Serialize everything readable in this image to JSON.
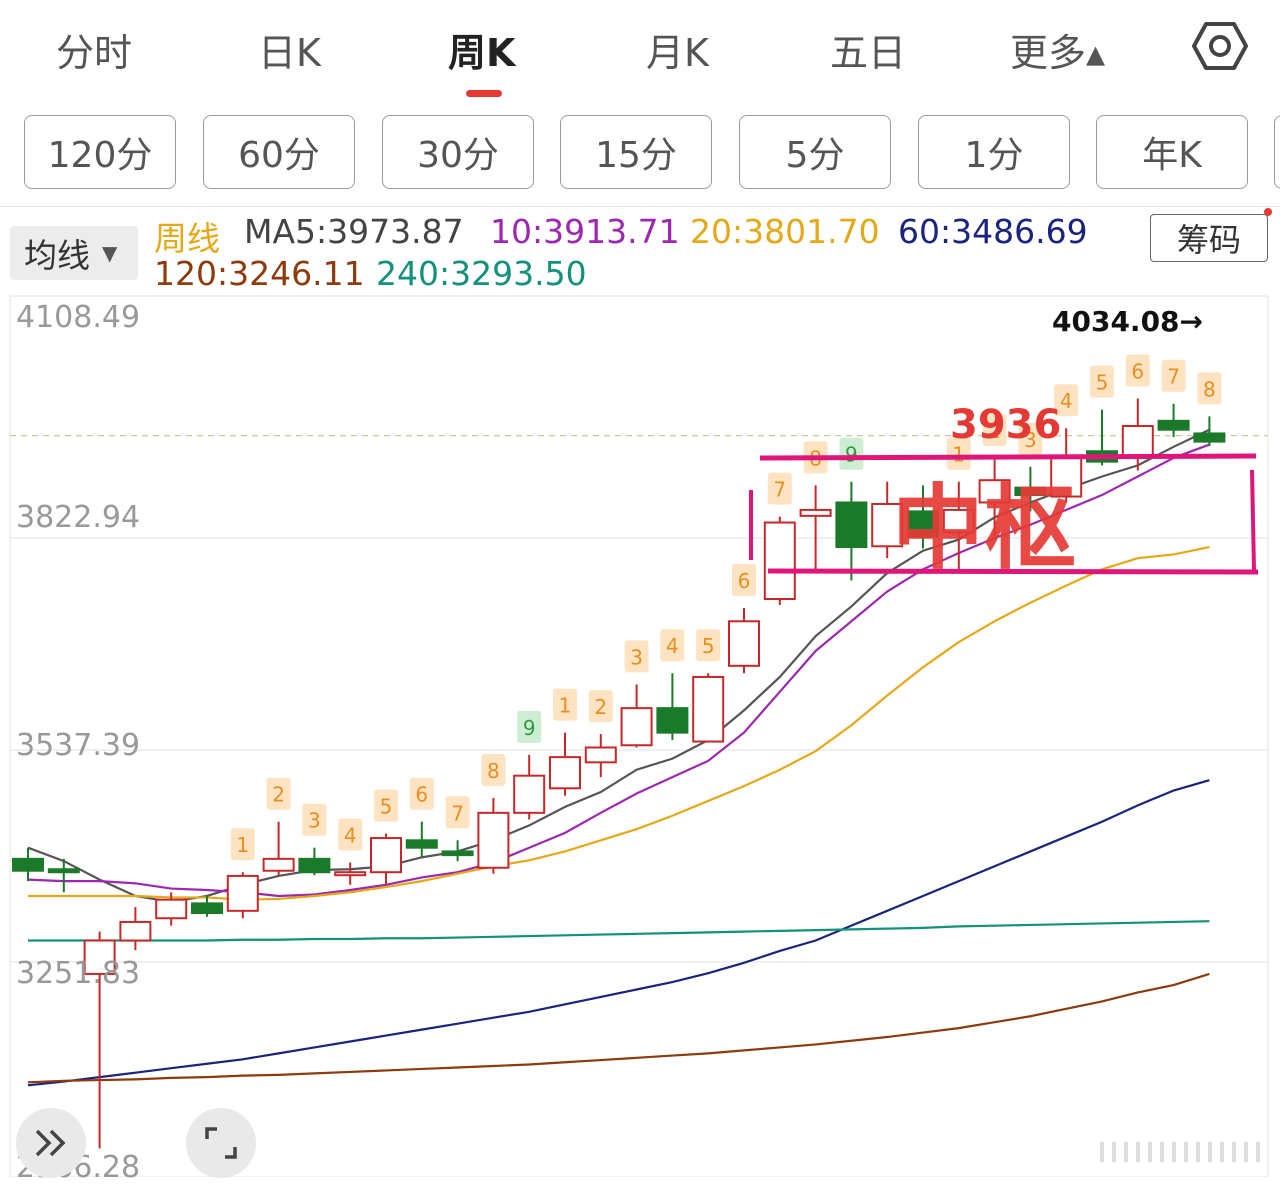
{
  "tabs": [
    {
      "label": "分时",
      "active": false
    },
    {
      "label": "日K",
      "active": false
    },
    {
      "label": "周K",
      "active": true
    },
    {
      "label": "月K",
      "active": false
    },
    {
      "label": "五日",
      "active": false
    },
    {
      "label": "更多▴",
      "active": false
    }
  ],
  "periods": [
    "120分",
    "60分",
    "30分",
    "15分",
    "5分",
    "1分",
    "年K"
  ],
  "ma_selector": "均线",
  "chips_button": "筹码",
  "legend": {
    "series_name": "周线",
    "ma5": "MA5:3973.87",
    "ma10": "10:3913.71",
    "ma20": "20:3801.70",
    "ma60": "60:3486.69",
    "ma120": "120:3246.11",
    "ma240": "240:3293.50"
  },
  "colors": {
    "accent": "#e53935",
    "up": "#c62828",
    "down": "#1b7a2a",
    "ma5": "#555555",
    "ma10": "#9c27b0",
    "ma20": "#e6a817",
    "ma60": "#1a237e",
    "ma120": "#8d3a0c",
    "ma240": "#12927a",
    "annotation": "#e0157a",
    "annotation_text": "#e53935"
  },
  "chart_data": {
    "type": "candlestick",
    "ylim": [
      2966.28,
      4108.49
    ],
    "y_ticks": [
      "4108.49",
      "3822.94",
      "3537.39",
      "3251.83",
      "2966.28"
    ],
    "reference_line": 3950,
    "high_marker": "4034.08→",
    "annotations": {
      "level": "3936",
      "zone_label": "中枢"
    },
    "candles": [
      {
        "o": 3380,
        "c": 3364,
        "h": 3395,
        "l": 3350,
        "tag": ""
      },
      {
        "o": 3366,
        "c": 3364,
        "h": 3380,
        "l": 3335,
        "tag": ""
      },
      {
        "o": 3225,
        "c": 3270,
        "h": 3282,
        "l": 2990,
        "tag": ""
      },
      {
        "o": 3270,
        "c": 3295,
        "h": 3315,
        "l": 3257,
        "tag": ""
      },
      {
        "o": 3300,
        "c": 3325,
        "h": 3335,
        "l": 3290,
        "tag": ""
      },
      {
        "o": 3320,
        "c": 3307,
        "h": 3330,
        "l": 3302,
        "tag": ""
      },
      {
        "o": 3310,
        "c": 3357,
        "h": 3362,
        "l": 3300,
        "tag": "1"
      },
      {
        "o": 3364,
        "c": 3380,
        "h": 3430,
        "l": 3357,
        "tag": "2"
      },
      {
        "o": 3380,
        "c": 3362,
        "h": 3395,
        "l": 3358,
        "tag": "3"
      },
      {
        "o": 3360,
        "c": 3362,
        "h": 3375,
        "l": 3345,
        "tag": "4"
      },
      {
        "o": 3362,
        "c": 3408,
        "h": 3414,
        "l": 3346,
        "tag": "5"
      },
      {
        "o": 3405,
        "c": 3395,
        "h": 3430,
        "l": 3383,
        "tag": "6"
      },
      {
        "o": 3390,
        "c": 3385,
        "h": 3405,
        "l": 3377,
        "tag": "7"
      },
      {
        "o": 3368,
        "c": 3442,
        "h": 3462,
        "l": 3360,
        "tag": "8"
      },
      {
        "o": 3442,
        "c": 3492,
        "h": 3520,
        "l": 3433,
        "tag": "9"
      },
      {
        "o": 3475,
        "c": 3517,
        "h": 3550,
        "l": 3465,
        "tag": "1"
      },
      {
        "o": 3510,
        "c": 3530,
        "h": 3548,
        "l": 3490,
        "tag": "2"
      },
      {
        "o": 3533,
        "c": 3583,
        "h": 3615,
        "l": 3530,
        "tag": "3"
      },
      {
        "o": 3583,
        "c": 3550,
        "h": 3630,
        "l": 3540,
        "tag": "4"
      },
      {
        "o": 3538,
        "c": 3625,
        "h": 3630,
        "l": 3538,
        "tag": "5"
      },
      {
        "o": 3640,
        "c": 3700,
        "h": 3718,
        "l": 3630,
        "tag": "6"
      },
      {
        "o": 3730,
        "c": 3833,
        "h": 3841,
        "l": 3722,
        "tag": "7"
      },
      {
        "o": 3842,
        "c": 3850,
        "h": 3883,
        "l": 3767,
        "tag": "8"
      },
      {
        "o": 3860,
        "c": 3800,
        "h": 3888,
        "l": 3755,
        "tag": "9"
      },
      {
        "o": 3801,
        "c": 3858,
        "h": 3888,
        "l": 3785,
        "tag": ""
      },
      {
        "o": 3848,
        "c": 3814,
        "h": 3883,
        "l": 3798,
        "tag": ""
      },
      {
        "o": 3820,
        "c": 3850,
        "h": 3888,
        "l": 3770,
        "tag": "1"
      },
      {
        "o": 3860,
        "c": 3890,
        "h": 3920,
        "l": 3810,
        "tag": "2"
      },
      {
        "o": 3880,
        "c": 3870,
        "h": 3908,
        "l": 3848,
        "tag": "3"
      },
      {
        "o": 3868,
        "c": 3920,
        "h": 3960,
        "l": 3860,
        "tag": "4"
      },
      {
        "o": 3929,
        "c": 3915,
        "h": 3985,
        "l": 3910,
        "tag": "5"
      },
      {
        "o": 3920,
        "c": 3963,
        "h": 4000,
        "l": 3903,
        "tag": "6"
      },
      {
        "o": 3970,
        "c": 3958,
        "h": 3993,
        "l": 3948,
        "tag": "7"
      },
      {
        "o": 3953,
        "c": 3942,
        "h": 3976,
        "l": 3936,
        "tag": "8"
      }
    ],
    "moving_averages": {
      "ma5": [
        3395,
        3377,
        3352,
        3330,
        3322,
        3330,
        3345,
        3357,
        3365,
        3366,
        3370,
        3382,
        3390,
        3405,
        3425,
        3450,
        3470,
        3500,
        3515,
        3540,
        3580,
        3625,
        3680,
        3720,
        3765,
        3795,
        3810,
        3840,
        3860,
        3878,
        3895,
        3910,
        3935,
        3958
      ],
      "ma10": [
        3352,
        3350,
        3350,
        3347,
        3340,
        3338,
        3335,
        3330,
        3332,
        3338,
        3345,
        3355,
        3362,
        3375,
        3395,
        3415,
        3442,
        3468,
        3490,
        3512,
        3550,
        3605,
        3660,
        3700,
        3740,
        3770,
        3792,
        3812,
        3830,
        3850,
        3870,
        3895,
        3920,
        3938
      ],
      "ma20": [
        3330,
        3330,
        3330,
        3330,
        3328,
        3328,
        3325,
        3326,
        3330,
        3335,
        3342,
        3350,
        3360,
        3370,
        3378,
        3390,
        3405,
        3420,
        3438,
        3458,
        3478,
        3500,
        3525,
        3560,
        3600,
        3638,
        3672,
        3700,
        3725,
        3748,
        3770,
        3785,
        3790,
        3800
      ],
      "ma60": [
        3075,
        3080,
        3086,
        3092,
        3098,
        3104,
        3110,
        3118,
        3126,
        3134,
        3142,
        3150,
        3158,
        3166,
        3174,
        3184,
        3194,
        3204,
        3214,
        3226,
        3240,
        3256,
        3270,
        3290,
        3310,
        3330,
        3350,
        3370,
        3390,
        3410,
        3430,
        3452,
        3472,
        3486
      ],
      "ma120": [
        3079,
        3081,
        3082,
        3083,
        3085,
        3086,
        3088,
        3089,
        3091,
        3093,
        3095,
        3097,
        3099,
        3101,
        3103,
        3106,
        3109,
        3112,
        3115,
        3118,
        3122,
        3126,
        3130,
        3135,
        3140,
        3146,
        3152,
        3160,
        3168,
        3178,
        3188,
        3200,
        3210,
        3225
      ],
      "ma240": [
        3270,
        3270,
        3270,
        3270,
        3270,
        3270,
        3271,
        3271,
        3272,
        3272,
        3273,
        3273,
        3274,
        3275,
        3276,
        3277,
        3278,
        3279,
        3280,
        3281,
        3282,
        3283,
        3284,
        3285,
        3286,
        3287,
        3289,
        3290,
        3291,
        3292,
        3293,
        3294,
        3295,
        3296
      ]
    }
  }
}
